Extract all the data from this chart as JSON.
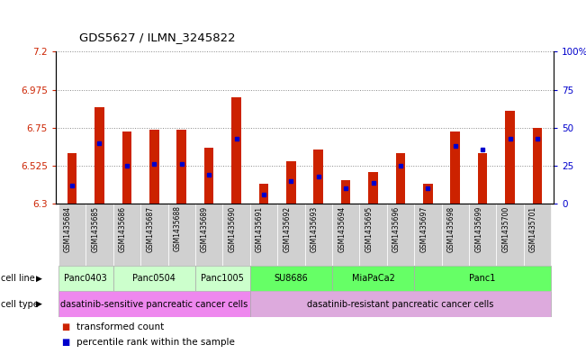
{
  "title": "GDS5627 / ILMN_3245822",
  "samples": [
    "GSM1435684",
    "GSM1435685",
    "GSM1435686",
    "GSM1435687",
    "GSM1435688",
    "GSM1435689",
    "GSM1435690",
    "GSM1435691",
    "GSM1435692",
    "GSM1435693",
    "GSM1435694",
    "GSM1435695",
    "GSM1435696",
    "GSM1435697",
    "GSM1435698",
    "GSM1435699",
    "GSM1435700",
    "GSM1435701"
  ],
  "transformed_count": [
    6.6,
    6.87,
    6.73,
    6.74,
    6.74,
    6.63,
    6.93,
    6.42,
    6.55,
    6.62,
    6.44,
    6.49,
    6.6,
    6.42,
    6.73,
    6.6,
    6.85,
    6.75
  ],
  "percentile": [
    0.12,
    0.4,
    0.25,
    0.26,
    0.26,
    0.19,
    0.43,
    0.06,
    0.15,
    0.18,
    0.1,
    0.14,
    0.25,
    0.1,
    0.38,
    0.36,
    0.43,
    0.43
  ],
  "bar_color": "#cc2200",
  "percentile_color": "#0000cc",
  "ylim_min": 6.3,
  "ylim_max": 7.2,
  "yticks": [
    6.3,
    6.525,
    6.75,
    6.975,
    7.2
  ],
  "ytick_labels": [
    "6.3",
    "6.525",
    "6.75",
    "6.975",
    "7.2"
  ],
  "right_yticks": [
    0,
    25,
    50,
    75,
    100
  ],
  "right_ytick_labels": [
    "0",
    "25",
    "50",
    "75",
    "100%"
  ],
  "cell_lines": [
    {
      "label": "Panc0403",
      "start": 0,
      "end": 2,
      "color": "#ccffcc"
    },
    {
      "label": "Panc0504",
      "start": 2,
      "end": 5,
      "color": "#ccffcc"
    },
    {
      "label": "Panc1005",
      "start": 5,
      "end": 7,
      "color": "#ccffcc"
    },
    {
      "label": "SU8686",
      "start": 7,
      "end": 10,
      "color": "#66ff66"
    },
    {
      "label": "MiaPaCa2",
      "start": 10,
      "end": 13,
      "color": "#66ff66"
    },
    {
      "label": "Panc1",
      "start": 13,
      "end": 18,
      "color": "#66ff66"
    }
  ],
  "cell_types": [
    {
      "label": "dasatinib-sensitive pancreatic cancer cells",
      "start": 0,
      "end": 7,
      "color": "#ee88ee"
    },
    {
      "label": "dasatinib-resistant pancreatic cancer cells",
      "start": 7,
      "end": 18,
      "color": "#ddaadd"
    }
  ],
  "label_bg_color": "#d0d0d0",
  "legend_items": [
    {
      "color": "#cc2200",
      "label": "transformed count"
    },
    {
      "color": "#0000cc",
      "label": "percentile rank within the sample"
    }
  ],
  "bar_width": 0.35,
  "background_color": "#ffffff",
  "dotted_line_color": "#888888"
}
